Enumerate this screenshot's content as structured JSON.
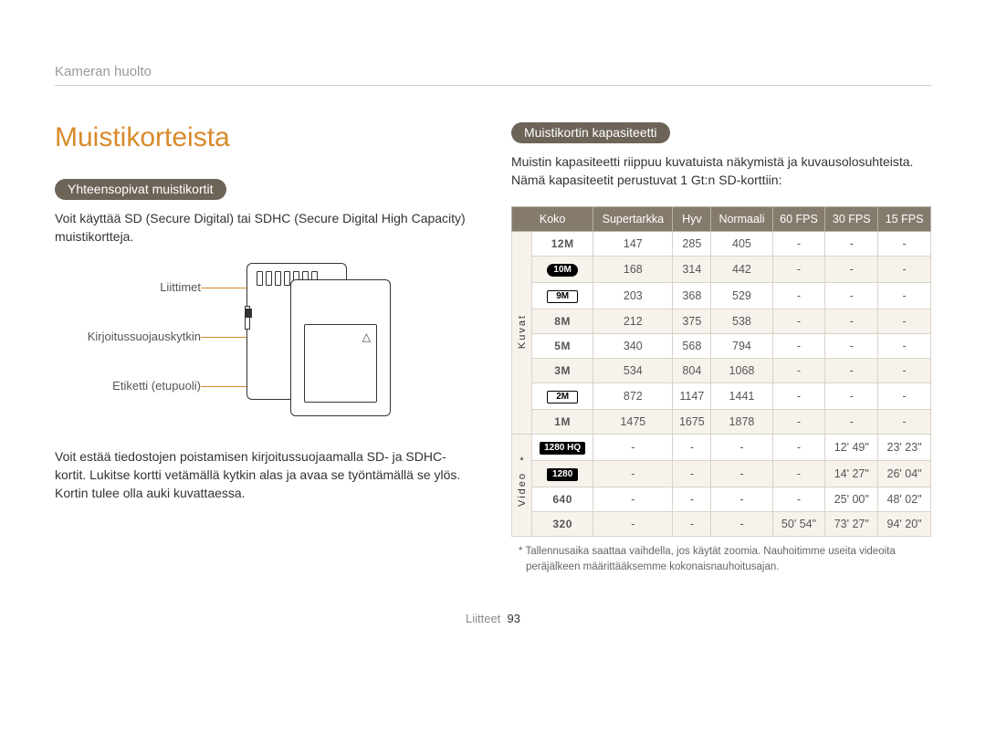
{
  "colors": {
    "accent_orange": "#d98a2b",
    "pill_brown": "#6d6458",
    "table_header_bg": "#857b6d",
    "table_alt_bg": "#f7f3ec",
    "table_border": "#d9d3c9",
    "breadcrumb": "#9a9a9a"
  },
  "breadcrumb": "Kameran huolto",
  "title": "Muistikorteista",
  "left": {
    "pill": "Yhteensopivat muistikortit",
    "intro": "Voit käyttää SD (Secure Digital) tai SDHC (Secure Digital High Capacity) muistikortteja.",
    "callouts": {
      "connectors": "Liittimet",
      "switch": "Kirjoitussuojauskytkin",
      "label": "Etiketti (etupuoli)"
    },
    "desc": "Voit estää tiedostojen poistamisen kirjoitussuojaamalla SD- ja SDHC-kortit. Lukitse kortti vetämällä kytkin alas ja avaa se työntämällä se ylös. Kortin tulee olla auki kuvattaessa."
  },
  "right": {
    "pill": "Muistikortin kapasiteetti",
    "intro": "Muistin kapasiteetti riippuu kuvatuista näkymistä ja kuvausolosuhteista. Nämä kapasiteetit perustuvat 1 Gt:n SD-korttiin:",
    "table": {
      "headers": [
        "Koko",
        "Supertarkka",
        "Hyv",
        "Normaali",
        "60 FPS",
        "30 FPS",
        "15 FPS"
      ],
      "groups": [
        {
          "label": "Kuvat",
          "marker": ""
        },
        {
          "label": "Video",
          "marker": "*"
        }
      ],
      "photo_rows": [
        {
          "size": "12M",
          "style": "plain",
          "cells": [
            "147",
            "285",
            "405",
            "-",
            "-",
            "-"
          ]
        },
        {
          "size": "10M",
          "style": "round",
          "cells": [
            "168",
            "314",
            "442",
            "-",
            "-",
            "-"
          ]
        },
        {
          "size": "9M",
          "style": "badge",
          "cells": [
            "203",
            "368",
            "529",
            "-",
            "-",
            "-"
          ]
        },
        {
          "size": "8M",
          "style": "plain",
          "cells": [
            "212",
            "375",
            "538",
            "-",
            "-",
            "-"
          ]
        },
        {
          "size": "5M",
          "style": "plain",
          "cells": [
            "340",
            "568",
            "794",
            "-",
            "-",
            "-"
          ]
        },
        {
          "size": "3M",
          "style": "plain",
          "cells": [
            "534",
            "804",
            "1068",
            "-",
            "-",
            "-"
          ]
        },
        {
          "size": "2M",
          "style": "badge",
          "cells": [
            "872",
            "1147",
            "1441",
            "-",
            "-",
            "-"
          ]
        },
        {
          "size": "1M",
          "style": "plain",
          "cells": [
            "1475",
            "1675",
            "1878",
            "-",
            "-",
            "-"
          ]
        }
      ],
      "video_rows": [
        {
          "size": "1280 HQ",
          "style": "inv",
          "cells": [
            "-",
            "-",
            "-",
            "-",
            "12' 49\"",
            "23' 23\""
          ]
        },
        {
          "size": "1280",
          "style": "inv",
          "cells": [
            "-",
            "-",
            "-",
            "-",
            "14' 27\"",
            "26' 04\""
          ]
        },
        {
          "size": "640",
          "style": "plain",
          "cells": [
            "-",
            "-",
            "-",
            "-",
            "25' 00\"",
            "48' 02\""
          ]
        },
        {
          "size": "320",
          "style": "plain",
          "cells": [
            "-",
            "-",
            "-",
            "50' 54\"",
            "73' 27\"",
            "94' 20\""
          ]
        }
      ]
    },
    "footnote": "* Tallennusaika saattaa vaihdella, jos käytät zoomia. Nauhoitimme useita videoita peräjälkeen määrittääksemme kokonaisnauhoitusajan."
  },
  "footer": {
    "label": "Liitteet",
    "page": "93"
  }
}
